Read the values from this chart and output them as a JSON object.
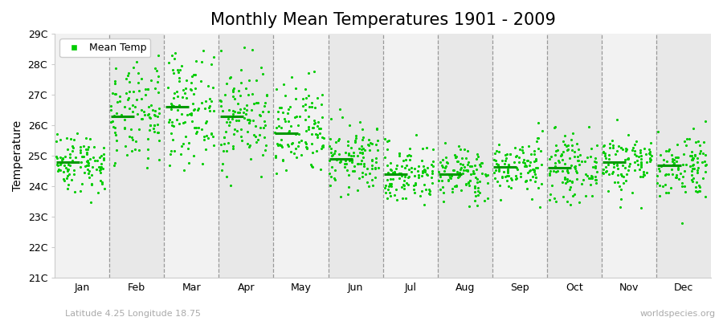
{
  "title": "Monthly Mean Temperatures 1901 - 2009",
  "ylabel": "Temperature",
  "xlabel_bottom_left": "Latitude 4.25 Longitude 18.75",
  "xlabel_bottom_right": "worldspecies.org",
  "ylim": [
    21,
    29
  ],
  "ytick_labels": [
    "21C",
    "22C",
    "23C",
    "24C",
    "25C",
    "26C",
    "27C",
    "28C",
    "29C"
  ],
  "ytick_values": [
    21,
    22,
    23,
    24,
    25,
    26,
    27,
    28,
    29
  ],
  "months": [
    "Jan",
    "Feb",
    "Mar",
    "Apr",
    "May",
    "Jun",
    "Jul",
    "Aug",
    "Sep",
    "Oct",
    "Nov",
    "Dec"
  ],
  "dot_color": "#00cc00",
  "mean_line_color": "#009900",
  "bg_color_light": "#f2f2f2",
  "bg_color_dark": "#e8e8e8",
  "title_fontsize": 15,
  "axis_label_fontsize": 10,
  "tick_label_fontsize": 9,
  "legend_fontsize": 9,
  "month_means": [
    24.8,
    26.3,
    26.6,
    26.3,
    25.75,
    24.9,
    24.4,
    24.4,
    24.65,
    24.6,
    24.8,
    24.7
  ],
  "month_stds": [
    0.5,
    0.85,
    0.9,
    0.85,
    0.8,
    0.55,
    0.5,
    0.45,
    0.45,
    0.5,
    0.5,
    0.55
  ],
  "n_years": 109
}
